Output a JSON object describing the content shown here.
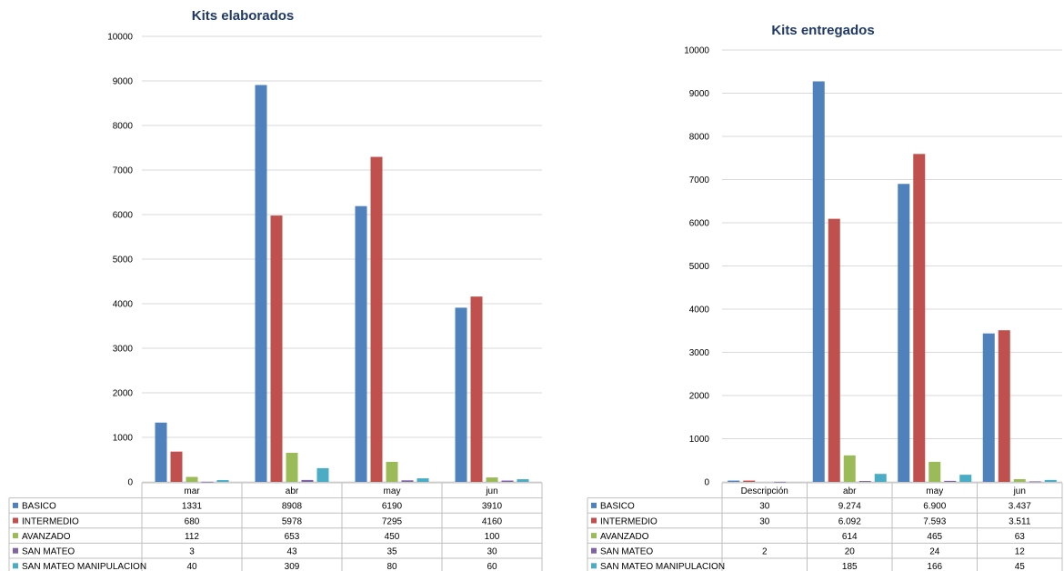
{
  "chart_data": [
    {
      "type": "bar",
      "title": "Kits elaborados",
      "categories": [
        "mar",
        "abr",
        "may",
        "jun"
      ],
      "ylim": [
        0,
        10000
      ],
      "yticks": [
        "0",
        "1000",
        "2000",
        "3000",
        "4000",
        "5000",
        "6000",
        "7000",
        "8000",
        "9000",
        "10000"
      ],
      "grid": true,
      "legend": "data-table",
      "series": [
        {
          "name": "BASICO",
          "color": "#4f81bd",
          "values": [
            1331,
            8908,
            6190,
            3910
          ],
          "labels": [
            "1331",
            "8908",
            "6190",
            "3910"
          ]
        },
        {
          "name": "INTERMEDIO",
          "color": "#c0504d",
          "values": [
            680,
            5978,
            7295,
            4160
          ],
          "labels": [
            "680",
            "5978",
            "7295",
            "4160"
          ]
        },
        {
          "name": "AVANZADO",
          "color": "#9bbb59",
          "values": [
            112,
            653,
            450,
            100
          ],
          "labels": [
            "112",
            "653",
            "450",
            "100"
          ]
        },
        {
          "name": "SAN MATEO",
          "color": "#8064a2",
          "values": [
            3,
            43,
            35,
            30
          ],
          "labels": [
            "3",
            "43",
            "35",
            "30"
          ]
        },
        {
          "name": "SAN MATEO MANIPULACION",
          "color": "#4bacc6",
          "values": [
            40,
            309,
            80,
            60
          ],
          "labels": [
            "40",
            "309",
            "80",
            "60"
          ]
        }
      ]
    },
    {
      "type": "bar",
      "title": "Kits entregados",
      "categories": [
        "Descripción",
        "abr",
        "may",
        "jun"
      ],
      "ylim": [
        0,
        10000
      ],
      "yticks": [
        "0",
        "1000",
        "2000",
        "3000",
        "4000",
        "5000",
        "6000",
        "7000",
        "8000",
        "9000",
        "10000"
      ],
      "grid": true,
      "legend": "data-table",
      "series": [
        {
          "name": "BASICO",
          "color": "#4f81bd",
          "values": [
            30,
            9274,
            6900,
            3437
          ],
          "labels": [
            "30",
            "9.274",
            "6.900",
            "3.437"
          ]
        },
        {
          "name": "INTERMEDIO",
          "color": "#c0504d",
          "values": [
            30,
            6092,
            7593,
            3511
          ],
          "labels": [
            "30",
            "6.092",
            "7.593",
            "3.511"
          ]
        },
        {
          "name": "AVANZADO",
          "color": "#9bbb59",
          "values": [
            0,
            614,
            465,
            63
          ],
          "labels": [
            "",
            "614",
            "465",
            "63"
          ]
        },
        {
          "name": "SAN MATEO",
          "color": "#8064a2",
          "values": [
            2,
            20,
            24,
            12
          ],
          "labels": [
            "2",
            "20",
            "24",
            "12"
          ]
        },
        {
          "name": "SAN MATEO MANIPULACION",
          "color": "#4bacc6",
          "values": [
            0,
            185,
            166,
            45
          ],
          "labels": [
            "",
            "185",
            "166",
            "45"
          ]
        }
      ]
    }
  ]
}
